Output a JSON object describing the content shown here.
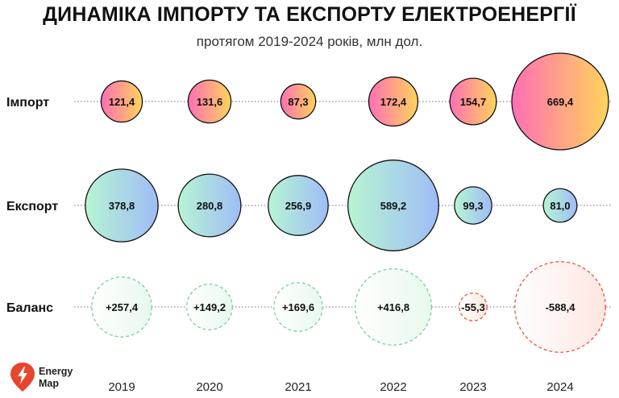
{
  "header": {
    "title": "ДИНАМІКА ІМПОРТУ ТА ЕКСПОРТУ ЕЛЕКТРОЕНЕРГІЇ",
    "subtitle": "протягом 2019-2024 років, млн дол."
  },
  "brand": {
    "line1": "Energy",
    "line2": "Map",
    "color": "#e8452c"
  },
  "chart_data": {
    "type": "bubble",
    "title": "ДИНАМІКА ІМПОРТУ ТА ЕКСПОРТУ ЕЛЕКТРОЕНЕРГІЇ",
    "subtitle": "протягом 2019-2024 років, млн дол.",
    "categories": [
      "2019",
      "2020",
      "2021",
      "2022",
      "2023",
      "2024"
    ],
    "series": [
      {
        "name": "Імпорт",
        "values": [
          121.4,
          131.6,
          87.3,
          172.4,
          154.7,
          669.4
        ],
        "labels": [
          "121,4",
          "131,6",
          "87,3",
          "172,4",
          "154,7",
          "669,4"
        ],
        "gradient": [
          "#ff6fb5",
          "#ffd45a"
        ],
        "border": "#111111",
        "dashed": false
      },
      {
        "name": "Експорт",
        "values": [
          378.8,
          280.8,
          256.9,
          589.2,
          99.3,
          81.0
        ],
        "labels": [
          "378,8",
          "280,8",
          "256,9",
          "589,2",
          "99,3",
          "81,0"
        ],
        "gradient": [
          "#b7f5d2",
          "#9fbcf7"
        ],
        "border": "#111111",
        "dashed": false
      },
      {
        "name": "Баланс",
        "values": [
          257.4,
          149.2,
          169.6,
          416.8,
          -55.3,
          -588.4
        ],
        "labels": [
          "+257,4",
          "+149,2",
          "+169,6",
          "+416,8",
          "-55,3",
          "-588,4"
        ],
        "positive_fill": "#e7f8ec",
        "positive_border": "#7fcf9a",
        "negative_fill": "#fde6e0",
        "negative_border": "#e8563a",
        "dashed": true
      }
    ],
    "size_encoding": "area proportional to absolute value",
    "grid": false,
    "row_guides": "dotted"
  }
}
